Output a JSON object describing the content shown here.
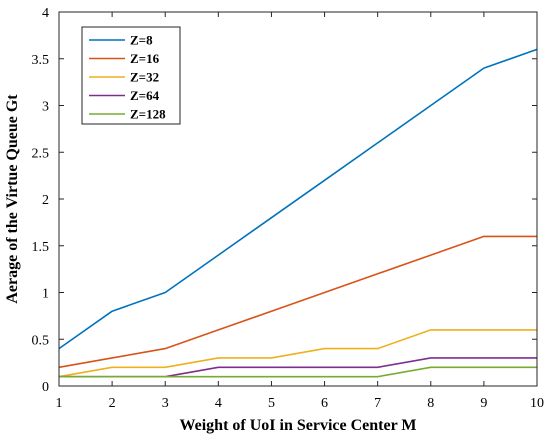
{
  "chart_data": {
    "type": "line",
    "title": "",
    "xlabel": "Weight of UoI in Service Center M",
    "ylabel": "Aerage of the Virtue Queue Gt",
    "xlim": [
      1,
      10
    ],
    "ylim": [
      0,
      4
    ],
    "xticks": [
      "1",
      "2",
      "3",
      "4",
      "5",
      "6",
      "7",
      "8",
      "9",
      "10"
    ],
    "yticks": [
      "0",
      "0.5",
      "1",
      "1.5",
      "2",
      "2.5",
      "3",
      "3.5",
      "4"
    ],
    "grid": false,
    "legend_position": "top-left",
    "x": [
      1,
      2,
      3,
      4,
      5,
      6,
      7,
      8,
      9,
      10
    ],
    "series": [
      {
        "name": "Z=8",
        "color": "#0072BD",
        "values": [
          0.4,
          0.8,
          1.0,
          1.4,
          1.8,
          2.2,
          2.6,
          3.0,
          3.4,
          3.6
        ]
      },
      {
        "name": "Z=16",
        "color": "#D95319",
        "values": [
          0.2,
          0.3,
          0.4,
          0.6,
          0.8,
          1.0,
          1.2,
          1.4,
          1.6,
          1.6
        ]
      },
      {
        "name": "Z=32",
        "color": "#EDB120",
        "values": [
          0.1,
          0.2,
          0.2,
          0.3,
          0.3,
          0.4,
          0.4,
          0.6,
          0.6,
          0.6
        ]
      },
      {
        "name": "Z=64",
        "color": "#7E2F8E",
        "values": [
          0.1,
          0.1,
          0.1,
          0.2,
          0.2,
          0.2,
          0.2,
          0.3,
          0.3,
          0.3
        ]
      },
      {
        "name": "Z=128",
        "color": "#77AC30",
        "values": [
          0.1,
          0.1,
          0.1,
          0.1,
          0.1,
          0.1,
          0.1,
          0.2,
          0.2,
          0.2
        ]
      }
    ]
  }
}
